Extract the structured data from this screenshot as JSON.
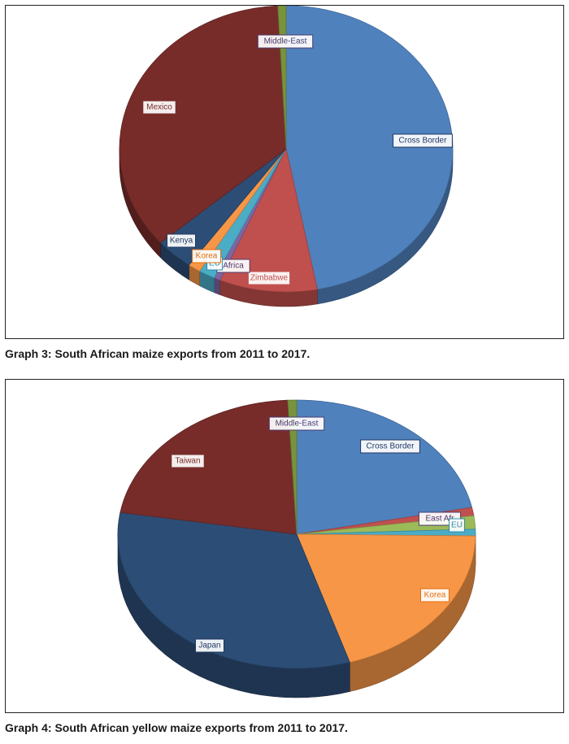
{
  "captions": {
    "graph3": "Graph 3: South African maize exports from 2011 to 2017.",
    "graph4": "Graph 4: South African yellow maize exports from 2011 to 2017."
  },
  "chart_data": [
    {
      "type": "pie",
      "style": "3d",
      "title": "",
      "categories": [
        "Cross Border",
        "Zimbabwe",
        "Africa",
        "EU",
        "Korea",
        "Kenya",
        "Mexico",
        "Middle-East"
      ],
      "labels": [
        "Cross Border",
        "Zimbabwe",
        "Africa",
        "EU",
        "Korea",
        "Kenya",
        "Mexico",
        "Middle-East"
      ],
      "values": [
        47.0,
        9.5,
        0.6,
        1.6,
        1.2,
        3.7,
        35.6,
        0.8
      ],
      "colors": [
        "#4f81bd",
        "#c0504d",
        "#8064a2",
        "#4bacc6",
        "#f79646",
        "#2c4d75",
        "#772c2a",
        "#77933c"
      ],
      "label_colors": [
        "#1f3864",
        "#c0504d",
        "#4b3a6e",
        "#2e8aa6",
        "#e46c0a",
        "#1f3864",
        "#772c2a",
        "#4b3a6e"
      ]
    },
    {
      "type": "pie",
      "style": "3d",
      "title": "",
      "categories": [
        "Cross Border",
        "",
        "East Africa",
        "EU",
        "Korea",
        "Japan",
        "Taiwan",
        "Middle-East"
      ],
      "labels": [
        "Cross Border",
        "",
        "East Afr",
        "EU",
        "Korea",
        "Japan",
        "Taiwan",
        "Middle-East"
      ],
      "values": [
        21.8,
        1.0,
        1.6,
        0.8,
        20.0,
        32.4,
        21.6,
        0.8
      ],
      "colors": [
        "#4f81bd",
        "#c0504d",
        "#9bbb59",
        "#4bacc6",
        "#f79646",
        "#2c4d75",
        "#772c2a",
        "#77933c"
      ],
      "label_colors": [
        "#1f3864",
        "#c0504d",
        "#4b3a6e",
        "#2e8aa6",
        "#e46c0a",
        "#1f3864",
        "#772c2a",
        "#4b3a6e"
      ]
    }
  ]
}
